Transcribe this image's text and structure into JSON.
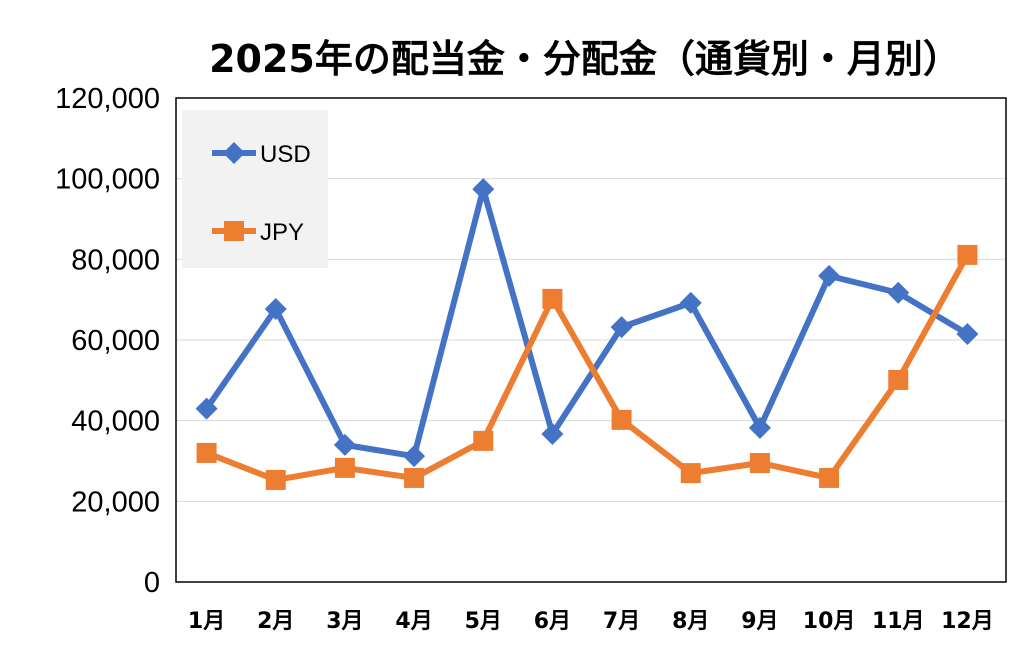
{
  "chart_data": {
    "type": "line",
    "title": "2025年の配当金・分配金（通貨別・月別）",
    "xlabel": "",
    "ylabel": "",
    "categories": [
      "1月",
      "2月",
      "3月",
      "4月",
      "5月",
      "6月",
      "7月",
      "8月",
      "9月",
      "10月",
      "11月",
      "12月"
    ],
    "ylim": [
      0,
      120000
    ],
    "yticks": [
      0,
      20000,
      40000,
      60000,
      80000,
      100000,
      120000
    ],
    "ytick_labels": [
      "0",
      "20,000",
      "40,000",
      "60,000",
      "80,000",
      "100,000",
      "120,000"
    ],
    "grid": true,
    "legend_position": "top-left",
    "series": [
      {
        "name": "USD",
        "color": "#4472c4",
        "marker": "diamond",
        "values": [
          43000,
          67700,
          34000,
          31200,
          97400,
          36700,
          63200,
          69200,
          38200,
          75900,
          71700,
          61500
        ]
      },
      {
        "name": "JPY",
        "color": "#ed7d31",
        "marker": "square",
        "values": [
          32000,
          25300,
          28300,
          25800,
          35000,
          70200,
          40200,
          27000,
          29500,
          25800,
          50100,
          81100
        ]
      }
    ]
  }
}
